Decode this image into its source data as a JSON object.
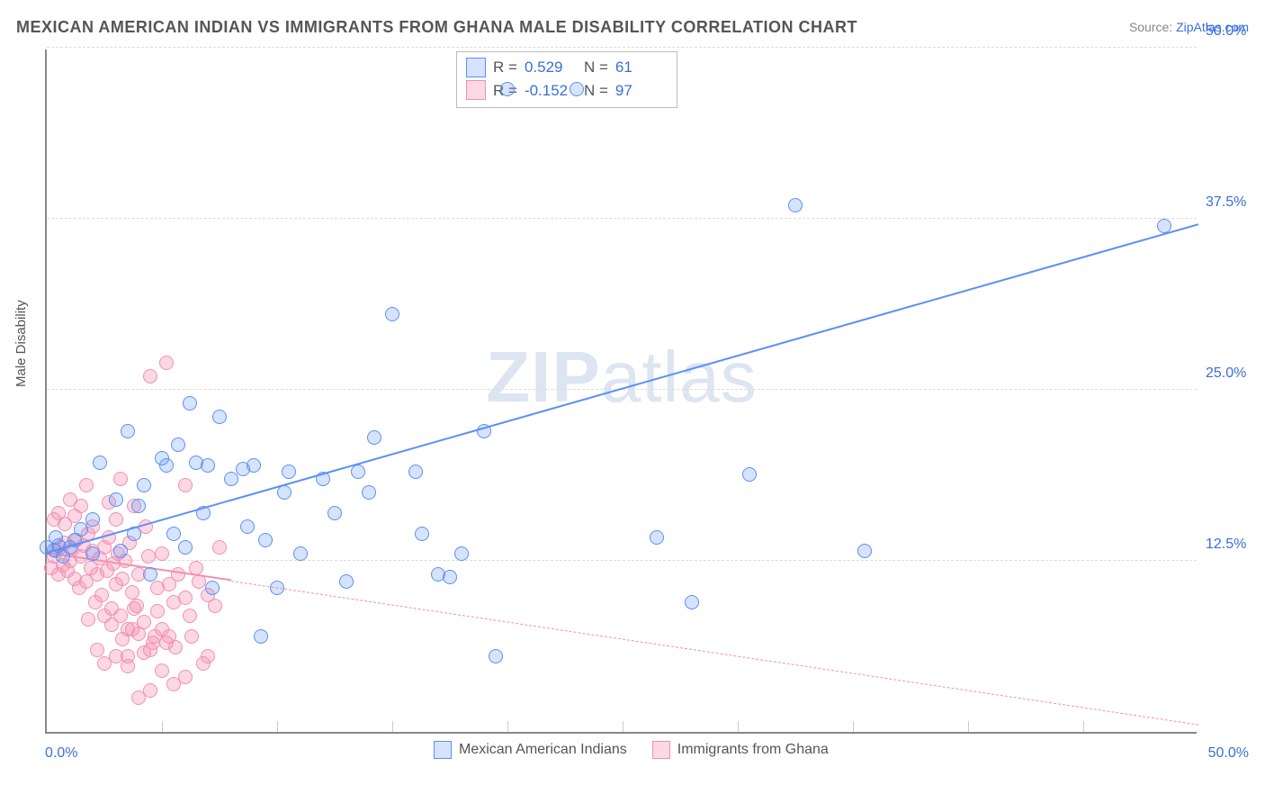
{
  "title": "MEXICAN AMERICAN INDIAN VS IMMIGRANTS FROM GHANA MALE DISABILITY CORRELATION CHART",
  "source_prefix": "Source: ",
  "source_link": "ZipAtlas.com",
  "y_axis_label": "Male Disability",
  "watermark": {
    "bold": "ZIP",
    "light": "atlas"
  },
  "chart": {
    "type": "scatter",
    "background_color": "#ffffff",
    "grid_color": "#dddddd",
    "axis_color": "#888888",
    "xlim": [
      0,
      50
    ],
    "ylim": [
      0,
      50
    ],
    "x_ticks": [
      0,
      50
    ],
    "y_ticks": [
      12.5,
      25.0,
      37.5,
      50.0
    ],
    "x_tick_labels": [
      "0.0%",
      "50.0%"
    ],
    "y_tick_labels": [
      "12.5%",
      "25.0%",
      "37.5%",
      "50.0%"
    ],
    "minor_x_ticks": [
      5,
      10,
      15,
      20,
      25,
      30,
      35,
      40,
      45
    ],
    "marker_radius": 8,
    "marker_border_width": 1.5,
    "marker_fill_opacity": 0.25,
    "label_fontsize": 16,
    "title_fontsize": 18,
    "series": [
      {
        "name": "Mexican American Indians",
        "color": "#5b8ff9",
        "fill": "rgba(91,143,249,0.25)",
        "R": "0.529",
        "N": "61",
        "trend": {
          "x1": 0,
          "y1": 13.0,
          "x2": 50,
          "y2": 37.0,
          "width": 2.5,
          "dashed": false
        },
        "points": [
          [
            0,
            13.5
          ],
          [
            0.3,
            13.3
          ],
          [
            0.5,
            13.6
          ],
          [
            0.4,
            14.2
          ],
          [
            0.7,
            12.8
          ],
          [
            1.0,
            13.5
          ],
          [
            1.2,
            14.0
          ],
          [
            1.5,
            14.8
          ],
          [
            2.0,
            15.5
          ],
          [
            2.0,
            13.0
          ],
          [
            2.3,
            19.7
          ],
          [
            3.0,
            17.0
          ],
          [
            3.2,
            13.2
          ],
          [
            3.5,
            22.0
          ],
          [
            4.0,
            16.5
          ],
          [
            4.2,
            18.0
          ],
          [
            4.5,
            11.5
          ],
          [
            5.0,
            20.0
          ],
          [
            5.2,
            19.5
          ],
          [
            5.5,
            14.5
          ],
          [
            5.7,
            21.0
          ],
          [
            6.0,
            13.5
          ],
          [
            6.5,
            19.7
          ],
          [
            6.8,
            16.0
          ],
          [
            7.0,
            19.5
          ],
          [
            7.2,
            10.5
          ],
          [
            7.5,
            23.0
          ],
          [
            8.0,
            18.5
          ],
          [
            8.5,
            19.2
          ],
          [
            8.7,
            15.0
          ],
          [
            9.0,
            19.5
          ],
          [
            9.3,
            7.0
          ],
          [
            9.5,
            14.0
          ],
          [
            10.0,
            10.5
          ],
          [
            10.3,
            17.5
          ],
          [
            10.5,
            19.0
          ],
          [
            11.0,
            13.0
          ],
          [
            12.0,
            18.5
          ],
          [
            12.5,
            16.0
          ],
          [
            13.0,
            11.0
          ],
          [
            13.5,
            19.0
          ],
          [
            14.0,
            17.5
          ],
          [
            14.2,
            21.5
          ],
          [
            15.0,
            30.5
          ],
          [
            16.0,
            19.0
          ],
          [
            16.3,
            14.5
          ],
          [
            17.0,
            11.5
          ],
          [
            17.5,
            11.3
          ],
          [
            18.0,
            13.0
          ],
          [
            19.0,
            22.0
          ],
          [
            19.5,
            5.5
          ],
          [
            20.0,
            47.0
          ],
          [
            23.0,
            47.0
          ],
          [
            26.5,
            14.2
          ],
          [
            28.0,
            9.5
          ],
          [
            30.5,
            18.8
          ],
          [
            32.5,
            38.5
          ],
          [
            35.5,
            13.2
          ],
          [
            48.5,
            37.0
          ],
          [
            3.8,
            14.5
          ],
          [
            6.2,
            24.0
          ]
        ]
      },
      {
        "name": "Immigrants from Ghana",
        "color": "#f48fb1",
        "fill": "rgba(244,143,177,0.35)",
        "R": "-0.152",
        "N": "97",
        "trend_solid": {
          "x1": 0,
          "y1": 13.0,
          "x2": 8,
          "y2": 11.0,
          "width": 2.5
        },
        "trend_dashed": {
          "x1": 8,
          "y1": 11.0,
          "x2": 50,
          "y2": 0.5,
          "width": 1.2
        },
        "points": [
          [
            0.2,
            12.0
          ],
          [
            0.3,
            12.8
          ],
          [
            0.4,
            13.2
          ],
          [
            0.5,
            11.5
          ],
          [
            0.6,
            13.5
          ],
          [
            0.7,
            12.2
          ],
          [
            0.8,
            13.8
          ],
          [
            0.9,
            11.8
          ],
          [
            1.0,
            12.5
          ],
          [
            1.1,
            13.3
          ],
          [
            1.2,
            11.2
          ],
          [
            1.3,
            14.0
          ],
          [
            1.4,
            10.5
          ],
          [
            1.5,
            12.8
          ],
          [
            1.6,
            13.6
          ],
          [
            1.7,
            11.0
          ],
          [
            1.8,
            14.5
          ],
          [
            1.9,
            12.0
          ],
          [
            2.0,
            13.2
          ],
          [
            2.1,
            9.5
          ],
          [
            2.2,
            11.5
          ],
          [
            2.3,
            12.7
          ],
          [
            2.4,
            10.0
          ],
          [
            2.5,
            13.5
          ],
          [
            2.6,
            11.8
          ],
          [
            2.7,
            14.2
          ],
          [
            2.8,
            9.0
          ],
          [
            2.9,
            12.3
          ],
          [
            3.0,
            10.8
          ],
          [
            3.1,
            13.0
          ],
          [
            3.2,
            8.5
          ],
          [
            3.3,
            11.2
          ],
          [
            3.4,
            12.5
          ],
          [
            3.5,
            7.5
          ],
          [
            3.6,
            13.8
          ],
          [
            3.7,
            10.2
          ],
          [
            3.8,
            16.5
          ],
          [
            3.9,
            9.2
          ],
          [
            4.0,
            11.5
          ],
          [
            4.2,
            8.0
          ],
          [
            4.4,
            12.8
          ],
          [
            4.5,
            26.0
          ],
          [
            4.6,
            6.5
          ],
          [
            4.8,
            10.5
          ],
          [
            5.0,
            13.0
          ],
          [
            5.2,
            27.0
          ],
          [
            5.3,
            7.0
          ],
          [
            5.5,
            9.5
          ],
          [
            5.7,
            11.5
          ],
          [
            6.0,
            18.0
          ],
          [
            6.2,
            8.5
          ],
          [
            6.5,
            12.0
          ],
          [
            6.8,
            5.0
          ],
          [
            7.0,
            10.0
          ],
          [
            7.5,
            13.5
          ],
          [
            0.3,
            15.5
          ],
          [
            0.5,
            16.0
          ],
          [
            0.8,
            15.2
          ],
          [
            1.0,
            17.0
          ],
          [
            1.2,
            15.8
          ],
          [
            1.5,
            16.5
          ],
          [
            1.7,
            18.0
          ],
          [
            2.0,
            15.0
          ],
          [
            2.2,
            6.0
          ],
          [
            2.5,
            8.5
          ],
          [
            2.7,
            16.8
          ],
          [
            3.0,
            15.5
          ],
          [
            3.2,
            18.5
          ],
          [
            3.5,
            5.5
          ],
          [
            3.8,
            9.0
          ],
          [
            4.0,
            7.2
          ],
          [
            4.3,
            15.0
          ],
          [
            4.5,
            6.0
          ],
          [
            4.8,
            8.8
          ],
          [
            5.0,
            7.5
          ],
          [
            5.3,
            10.8
          ],
          [
            5.6,
            6.2
          ],
          [
            6.0,
            9.8
          ],
          [
            6.3,
            7.0
          ],
          [
            6.6,
            11.0
          ],
          [
            7.0,
            5.5
          ],
          [
            7.3,
            9.2
          ],
          [
            4.0,
            2.5
          ],
          [
            4.5,
            3.0
          ],
          [
            5.0,
            4.5
          ],
          [
            5.5,
            3.5
          ],
          [
            6.0,
            4.0
          ],
          [
            3.5,
            4.8
          ],
          [
            3.0,
            5.5
          ],
          [
            2.5,
            5.0
          ],
          [
            2.8,
            7.8
          ],
          [
            3.3,
            6.8
          ],
          [
            3.7,
            7.5
          ],
          [
            4.2,
            5.8
          ],
          [
            4.7,
            7.0
          ],
          [
            5.2,
            6.5
          ],
          [
            1.8,
            8.2
          ]
        ]
      }
    ]
  },
  "legend_labels": {
    "R": "R =",
    "N": "N ="
  }
}
